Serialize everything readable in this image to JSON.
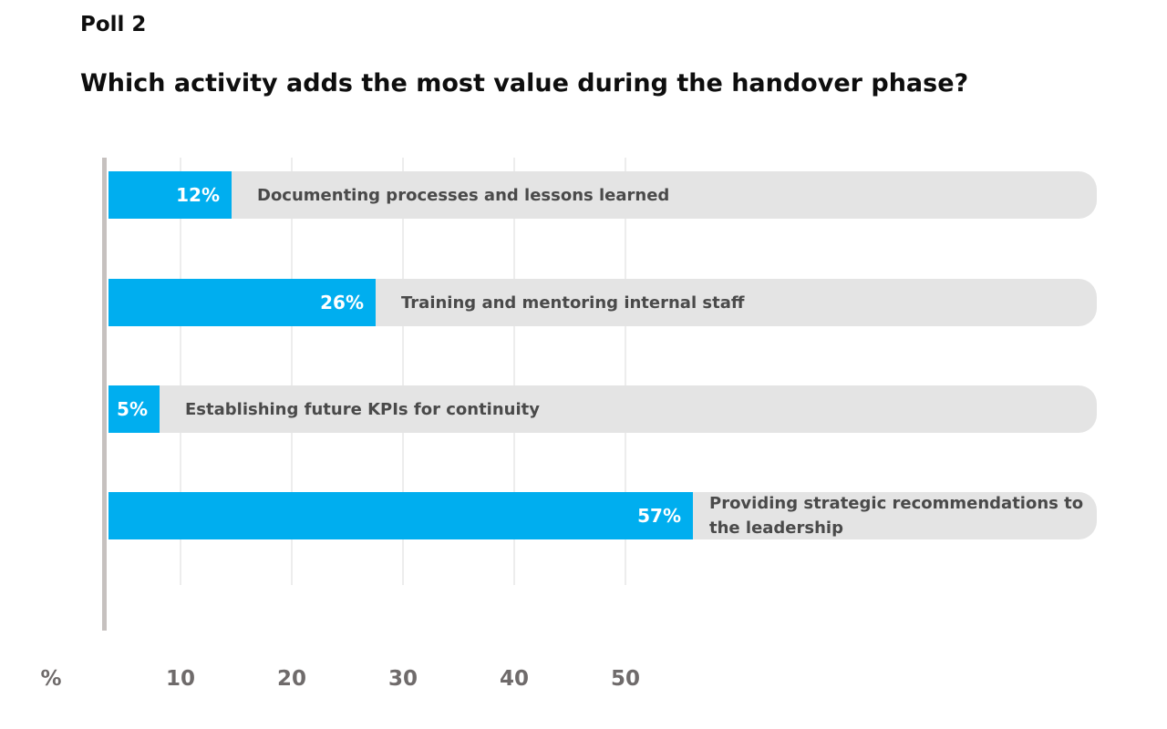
{
  "header": {
    "title": "Poll 2",
    "question": "Which activity adds the most value during the handover phase?"
  },
  "chart_data": {
    "type": "bar",
    "orientation": "horizontal",
    "title": "Poll 2",
    "subtitle": "Which activity adds the most value during the handover phase?",
    "categories": [
      "Documenting processes and lessons learned",
      "Training and mentoring internal staff",
      "Establishing future KPIs for continuity",
      "Providing strategic recommendations to the leadership"
    ],
    "values": [
      12,
      26,
      5,
      57
    ],
    "value_labels": [
      "12%",
      "26%",
      "5%",
      "57%"
    ],
    "x_axis_unit": "%",
    "x_ticks": [
      "10",
      "20",
      "30",
      "40",
      "50"
    ],
    "xlim": [
      0,
      96
    ],
    "grid": true,
    "legend": false,
    "colors": {
      "bar": "#00aeef",
      "track": "#e4e4e4",
      "value_text": "#ffffff",
      "category_text": "#4a4a4a",
      "axis_text": "#6f6b6b",
      "grid_line": "#ededed",
      "axis_line": "#c6c1bf",
      "title_text": "#0e0e0e"
    }
  }
}
